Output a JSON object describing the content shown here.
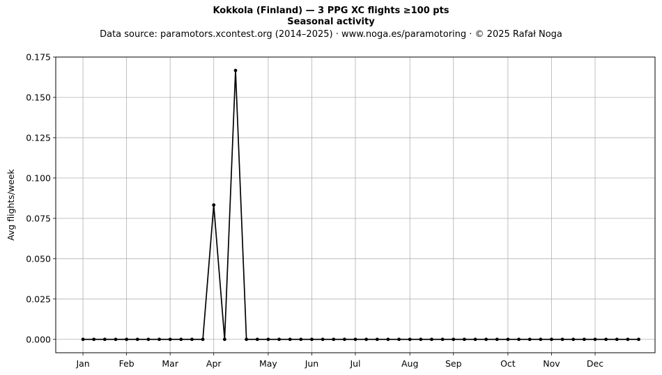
{
  "header": {
    "title": "Kokkola (Finland)  —  3 PPG XC flights ≥100 pts",
    "subtitle": "Seasonal activity",
    "source": "Data source: paramotors.xcontest.org (2014–2025)  ·  www.noga.es/paramotoring  ·  © 2025 Rafał Noga"
  },
  "chart_data": {
    "type": "line",
    "title": "Kokkola (Finland)  —  3 PPG XC flights ≥100 pts",
    "subtitle": "Seasonal activity",
    "xlabel": "",
    "ylabel": "Avg flights/week",
    "ylim": [
      -0.0083,
      0.175
    ],
    "xlim": [
      -1.5,
      53.5
    ],
    "grid": true,
    "color": "#000000",
    "month_ticks": [
      {
        "label": "Jan",
        "week": 1
      },
      {
        "label": "Feb",
        "week": 5
      },
      {
        "label": "Mar",
        "week": 9
      },
      {
        "label": "Apr",
        "week": 13
      },
      {
        "label": "May",
        "week": 18
      },
      {
        "label": "Jun",
        "week": 22
      },
      {
        "label": "Jul",
        "week": 26
      },
      {
        "label": "Aug",
        "week": 31
      },
      {
        "label": "Sep",
        "week": 35
      },
      {
        "label": "Oct",
        "week": 40
      },
      {
        "label": "Nov",
        "week": 44
      },
      {
        "label": "Dec",
        "week": 48
      }
    ],
    "y_ticks": [
      "0.000",
      "0.025",
      "0.050",
      "0.075",
      "0.100",
      "0.125",
      "0.150",
      "0.175"
    ],
    "series": [
      {
        "x": [
          1,
          2,
          3,
          4,
          5,
          6,
          7,
          8,
          9,
          10,
          11,
          12,
          13,
          14,
          15,
          16,
          17,
          18,
          19,
          20,
          21,
          22,
          23,
          24,
          25,
          26,
          27,
          28,
          29,
          30,
          31,
          32,
          33,
          34,
          35,
          36,
          37,
          38,
          39,
          40,
          41,
          42,
          43,
          44,
          45,
          46,
          47,
          48,
          49,
          50,
          51,
          52
        ],
        "values": [
          0,
          0,
          0,
          0,
          0,
          0,
          0,
          0,
          0,
          0,
          0,
          0,
          0.0833,
          0,
          0.1667,
          0,
          0,
          0,
          0,
          0,
          0,
          0,
          0,
          0,
          0,
          0,
          0,
          0,
          0,
          0,
          0,
          0,
          0,
          0,
          0,
          0,
          0,
          0,
          0,
          0,
          0,
          0,
          0,
          0,
          0,
          0,
          0,
          0,
          0,
          0,
          0,
          0
        ]
      }
    ]
  }
}
